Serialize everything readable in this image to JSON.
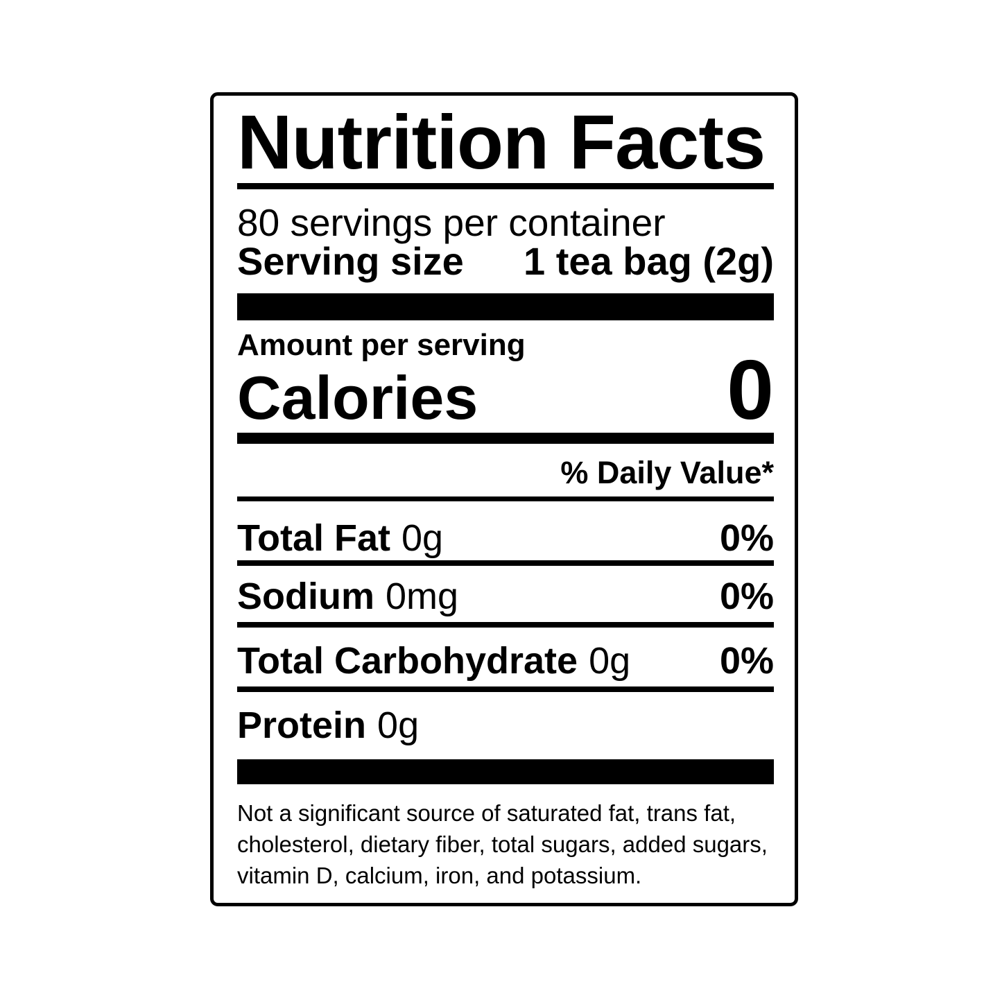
{
  "colors": {
    "ink": "#000000",
    "paper": "#ffffff"
  },
  "label": {
    "title": "Nutrition Facts",
    "servings_per_container": "80 servings per container",
    "serving_size": {
      "label": "Serving size",
      "value": "1 tea bag (2g)"
    },
    "amount_per_serving": "Amount per serving",
    "calories": {
      "label": "Calories",
      "value": "0"
    },
    "daily_value_header": "% Daily Value*",
    "nutrients": [
      {
        "name": "Total Fat",
        "amount": "0g",
        "daily_value": "0%"
      },
      {
        "name": "Sodium",
        "amount": "0mg",
        "daily_value": "0%"
      },
      {
        "name": "Total Carbohydrate",
        "amount": "0g",
        "daily_value": "0%"
      },
      {
        "name": "Protein",
        "amount": "0g",
        "daily_value": ""
      }
    ],
    "footnote_lines": [
      "Not a significant source of saturated fat, trans fat,",
      "cholesterol, dietary fiber, total sugars, added sugars,",
      "vitamin D, calcium, iron, and potassium."
    ]
  }
}
